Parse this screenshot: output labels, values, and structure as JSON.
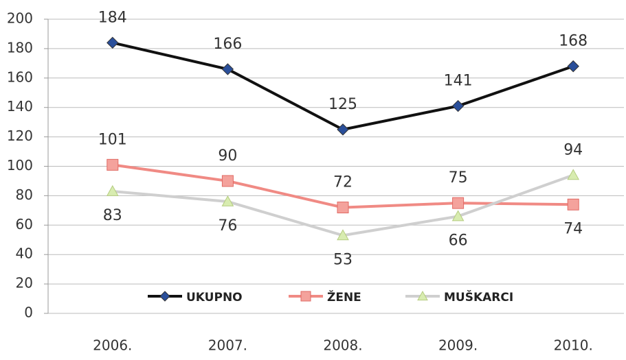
{
  "chart_data": {
    "type": "line",
    "categories": [
      "2006.",
      "2007.",
      "2008.",
      "2009.",
      "2010."
    ],
    "series": [
      {
        "name": "UKUPNO",
        "color": "#111111",
        "marker_color": "#2a4f9a",
        "marker": "diamond",
        "values": [
          184,
          166,
          125,
          141,
          168
        ]
      },
      {
        "name": "ŽENE",
        "color": "#f08a84",
        "marker_color": "#f4a29c",
        "marker": "square",
        "values": [
          101,
          90,
          72,
          75,
          74
        ]
      },
      {
        "name": "MUŠKARCI",
        "color": "#cfcfcf",
        "marker_color": "#d8ecb0",
        "marker": "triangle",
        "values": [
          83,
          76,
          53,
          66,
          94
        ]
      }
    ],
    "ylim": [
      0,
      200
    ],
    "yticks": [
      0,
      20,
      40,
      60,
      80,
      100,
      120,
      140,
      160,
      180,
      200
    ],
    "grid": true
  }
}
